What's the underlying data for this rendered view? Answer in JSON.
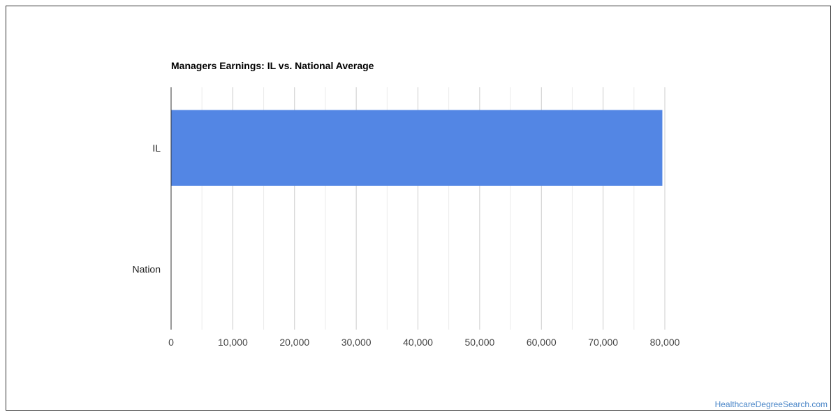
{
  "chart_data": {
    "type": "bar",
    "orientation": "horizontal",
    "title": "Managers Earnings: IL vs. National Average",
    "categories": [
      "IL",
      "Nation"
    ],
    "values": [
      79600,
      0
    ],
    "xlim": [
      0,
      80000
    ],
    "xticks": [
      0,
      10000,
      20000,
      30000,
      40000,
      50000,
      60000,
      70000,
      80000
    ],
    "xtick_labels": [
      "0",
      "10,000",
      "20,000",
      "30,000",
      "40,000",
      "50,000",
      "60,000",
      "70,000",
      "80,000"
    ],
    "grid": true,
    "bar_color": "#5386e4",
    "xlabel": "",
    "ylabel": ""
  },
  "credit": "HealthcareDegreeSearch.com"
}
